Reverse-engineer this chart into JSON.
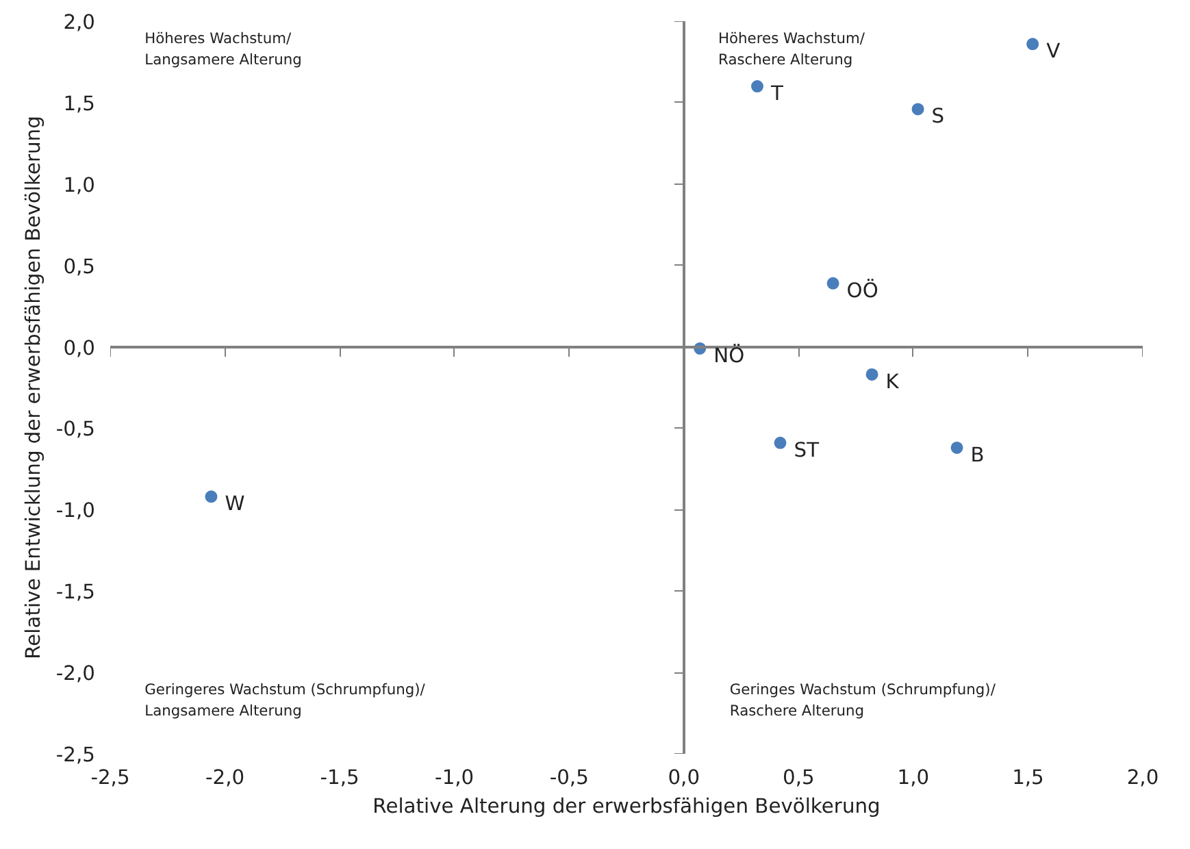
{
  "chart_data": {
    "type": "scatter",
    "xlabel": "Relative Alterung der erwerbsfähigen Bevölkerung",
    "ylabel": "Relative Entwicklung der erwerbsfähigen Bevölkerung",
    "x": [
      1.52,
      0.32,
      1.02,
      0.65,
      0.07,
      0.82,
      0.42,
      1.19,
      -2.06
    ],
    "values": [
      1.86,
      1.6,
      1.46,
      0.39,
      -0.01,
      -0.17,
      -0.59,
      -0.62,
      -0.92
    ],
    "color": "#4a7ebb",
    "marker": "circle",
    "xlim": [
      -2.5,
      2.0
    ],
    "ylim": [
      -2.5,
      2.0
    ],
    "xticks": [
      {
        "value": -2.5,
        "label": "-2,5"
      },
      {
        "value": -2.0,
        "label": "-2,0"
      },
      {
        "value": -1.5,
        "label": "-1,5"
      },
      {
        "value": -1.0,
        "label": "-1,0"
      },
      {
        "value": -0.5,
        "label": "-0,5"
      },
      {
        "value": 0.0,
        "label": "0,0"
      },
      {
        "value": 0.5,
        "label": "0,5"
      },
      {
        "value": 1.0,
        "label": "1,0"
      },
      {
        "value": 1.5,
        "label": "1,5"
      },
      {
        "value": 2.0,
        "label": "2,0"
      }
    ],
    "yticks": [
      {
        "value": -2.5,
        "label": "-2,5"
      },
      {
        "value": -2.0,
        "label": "-2,0"
      },
      {
        "value": -1.5,
        "label": "-1,5"
      },
      {
        "value": -1.0,
        "label": "-1,0"
      },
      {
        "value": -0.5,
        "label": "-0,5"
      },
      {
        "value": 0.0,
        "label": "0,0"
      },
      {
        "value": 0.5,
        "label": "0,5"
      },
      {
        "value": 1.0,
        "label": "1,0"
      },
      {
        "value": 1.5,
        "label": "1,5"
      },
      {
        "value": 2.0,
        "label": "2,0"
      }
    ],
    "annotations": [
      {
        "text": "V",
        "x": 1.52,
        "y": 1.86
      },
      {
        "text": "T",
        "x": 0.32,
        "y": 1.6
      },
      {
        "text": "S",
        "x": 1.02,
        "y": 1.46
      },
      {
        "text": "OÖ",
        "x": 0.65,
        "y": 0.39
      },
      {
        "text": "NÖ",
        "x": 0.07,
        "y": -0.01
      },
      {
        "text": "K",
        "x": 0.82,
        "y": -0.17
      },
      {
        "text": "ST",
        "x": 0.42,
        "y": -0.59
      },
      {
        "text": "B",
        "x": 1.19,
        "y": -0.62
      },
      {
        "text": "W",
        "x": -2.06,
        "y": -0.92
      },
      "Höheres Wachstum/\nLangsamere Alterung",
      "Höheres Wachstum/\nRaschere Alterung",
      "Geringeres Wachstum (Schrumpfung)/\nLangsamere Alterung",
      "Geringes Wachstum (Schrumpfung)/\nRaschere Alterung"
    ]
  }
}
